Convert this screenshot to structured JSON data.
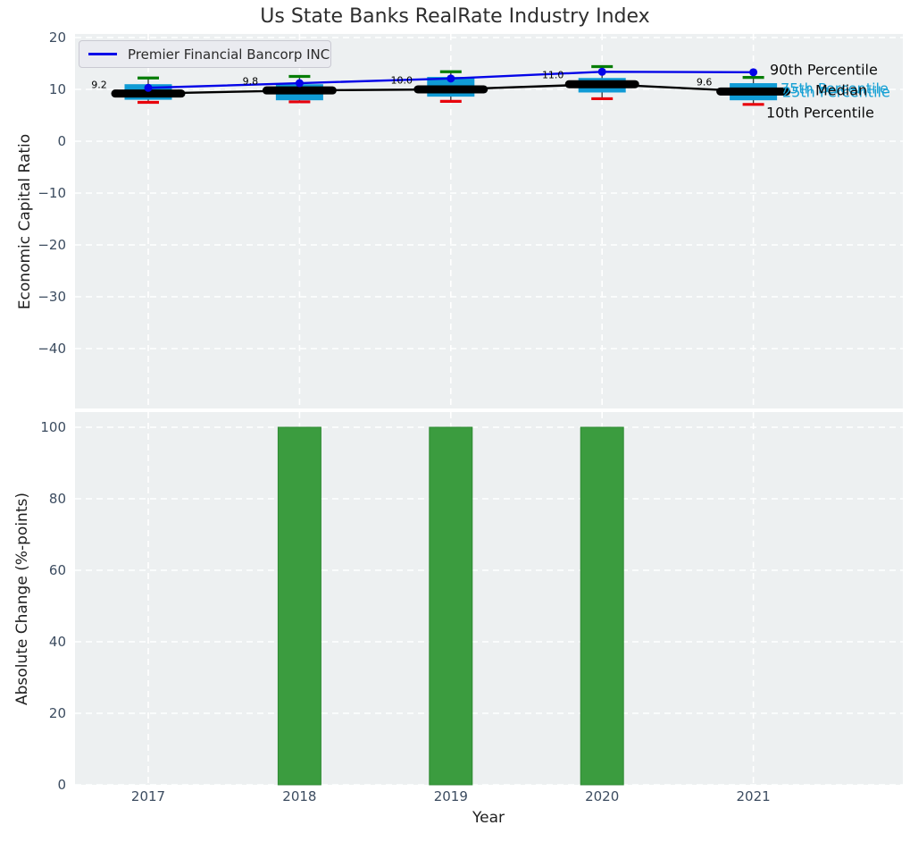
{
  "title": "Us State Banks RealRate Industry Index",
  "colors": {
    "axes_bg": "#edf0f1",
    "grid": "#ffffff",
    "box_fill": "#109bd5",
    "cap_90th": "#067d06",
    "cap_10th": "#e8000b",
    "median_line": "#000000",
    "company_line": "#0404e8",
    "bar_fill": "#3b9c3f",
    "tick_text": "#3c4c60"
  },
  "chart_data": [
    {
      "type": "boxplot-line",
      "title": "Us State Banks RealRate Industry Index",
      "ylabel": "Economic Capital Ratio",
      "x": [
        2017,
        2018,
        2019,
        2020,
        2021
      ],
      "yticks": [
        20,
        10,
        0,
        -10,
        -20,
        -30,
        -40
      ],
      "ylim": [
        -51.6,
        20.7
      ],
      "grid": "white-dashed",
      "legend_position": "upper left",
      "series": {
        "company": {
          "name": "Premier Financial Bancorp INC",
          "values": [
            10.3,
            11.2,
            12.1,
            13.4,
            13.3
          ]
        },
        "median": {
          "values": [
            9.2,
            9.8,
            10.0,
            11.0,
            9.6
          ]
        },
        "p90": {
          "values": [
            12.2,
            12.5,
            13.4,
            14.4,
            12.3
          ]
        },
        "p75": {
          "values": [
            11.0,
            11.0,
            12.4,
            12.2,
            11.2
          ]
        },
        "p25": {
          "values": [
            8.0,
            7.9,
            8.6,
            9.4,
            7.9
          ]
        },
        "p10": {
          "values": [
            7.5,
            7.6,
            7.7,
            8.2,
            7.1
          ]
        }
      },
      "median_annotations": [
        "9.2",
        "9.8",
        "10.0",
        "11.0",
        "9.6"
      ],
      "right_labels": [
        "90th Percentile",
        "75th Percentile",
        "Median",
        "25th Percentile",
        "10th Percentile"
      ]
    },
    {
      "type": "bar",
      "ylabel": "Absolute Change (%-points)",
      "xlabel": "Year",
      "categories": [
        2017,
        2018,
        2019,
        2020,
        2021
      ],
      "values": [
        0,
        100,
        100,
        100,
        0
      ],
      "yticks": [
        0,
        20,
        40,
        60,
        80,
        100
      ],
      "ylim": [
        0,
        104
      ],
      "grid": "white-dashed"
    }
  ]
}
